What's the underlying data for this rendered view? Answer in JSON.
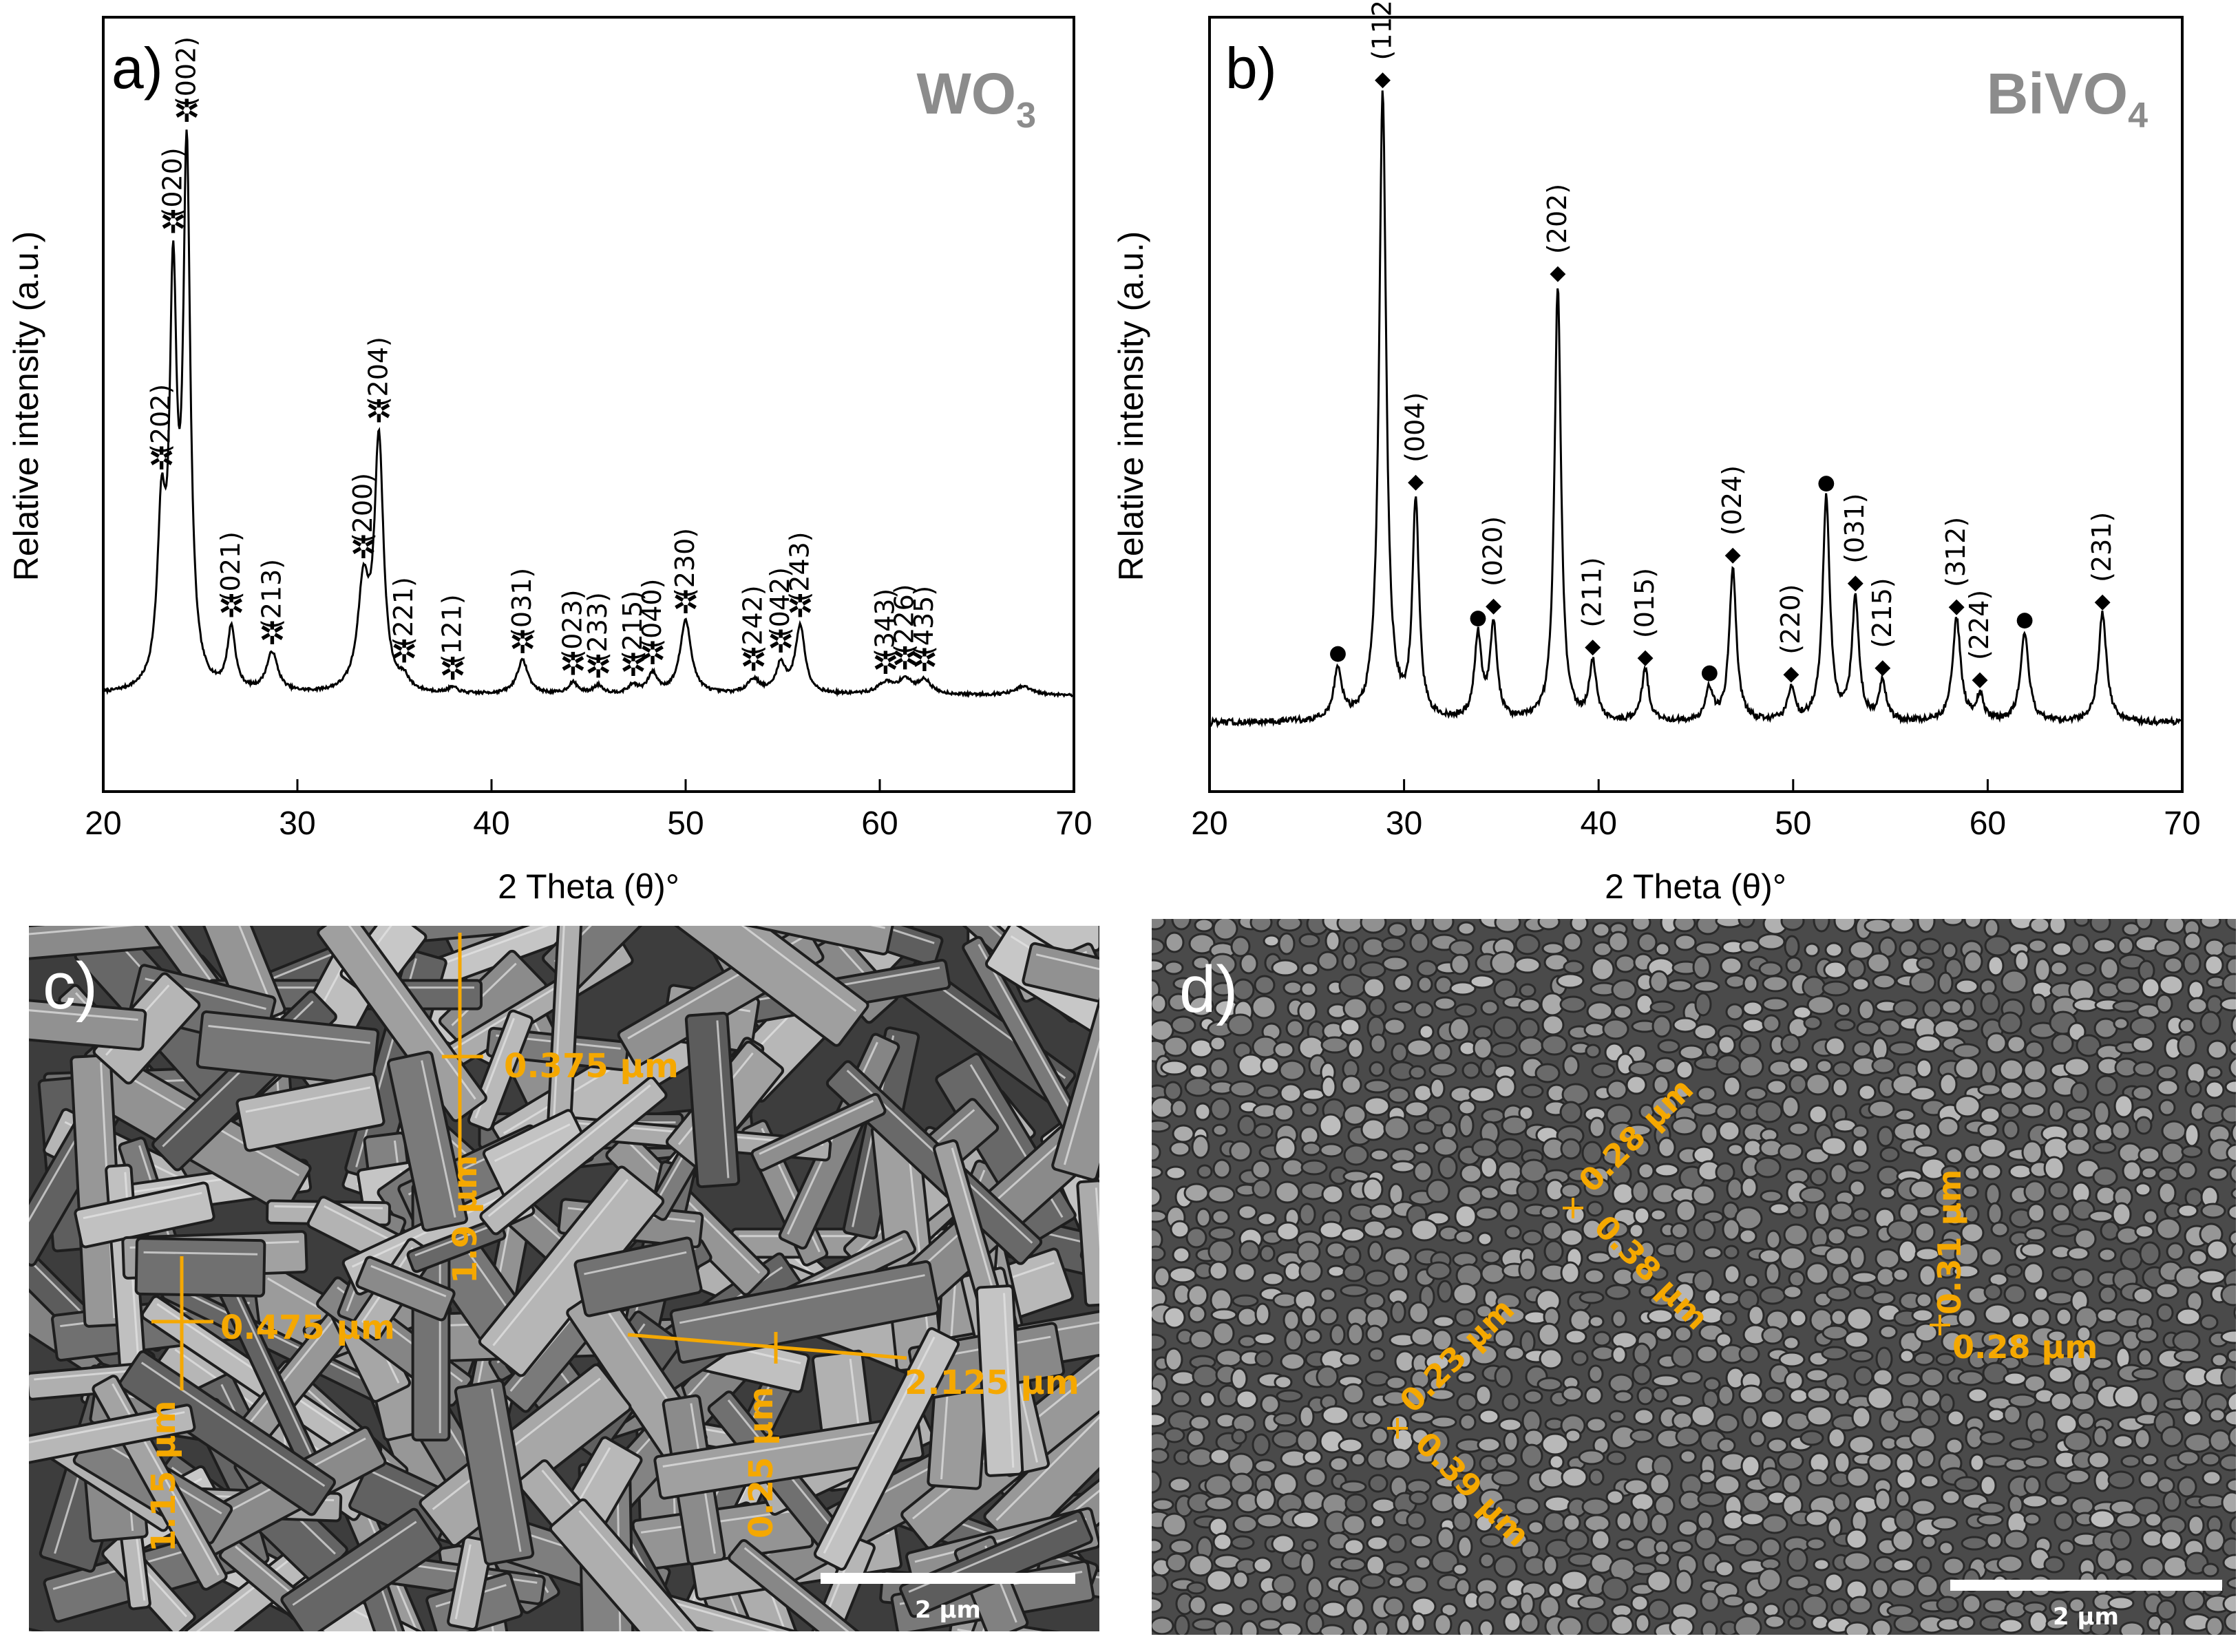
{
  "panels": {
    "a": {
      "label": "a)",
      "material_main": "WO",
      "material_sub": "3"
    },
    "b": {
      "label": "b)",
      "material_main": "BiVO",
      "material_sub": "4"
    },
    "c": {
      "label": "c)",
      "scale_bar": "2 μm",
      "measurements": [
        "0.375 μm",
        "1.9 μm",
        "0.475 μm",
        "1.15 μm",
        "2.125 μm",
        "0.25 μm"
      ]
    },
    "d": {
      "label": "d)",
      "scale_bar": "2 μm",
      "measurements": [
        "0.28 μm",
        "0.38 μm",
        "0.23 μm",
        "0.39 μm",
        "0.31 μm",
        "0.28 μm"
      ]
    }
  },
  "colors": {
    "annotation": "#f5a800",
    "trace": "#000000",
    "title_gray": "#8c8c8c"
  },
  "chart_data": [
    {
      "type": "line",
      "panel": "a",
      "xlabel": "2 Theta (θ)°",
      "ylabel": "Relative intensity (a.u.)",
      "xlim": [
        20,
        70
      ],
      "xticks": [
        20,
        30,
        40,
        50,
        60,
        70
      ],
      "baseline": 0,
      "peaks": [
        {
          "x": 23.0,
          "h": 28,
          "w": 0.25,
          "label": "(202)"
        },
        {
          "x": 23.6,
          "h": 68,
          "w": 0.22,
          "label": "(020)"
        },
        {
          "x": 24.3,
          "h": 93,
          "w": 0.22,
          "label": "(002)"
        },
        {
          "x": 26.6,
          "h": 11,
          "w": 0.25,
          "label": "(021)"
        },
        {
          "x": 28.7,
          "h": 7,
          "w": 0.35,
          "label": "(213)"
        },
        {
          "x": 33.4,
          "h": 18,
          "w": 0.35,
          "label": "(200)"
        },
        {
          "x": 34.2,
          "h": 44,
          "w": 0.28,
          "label": "(204)"
        },
        {
          "x": 35.5,
          "h": 2,
          "w": 0.3,
          "label": "(221)"
        },
        {
          "x": 38.0,
          "h": 1,
          "w": 0.3,
          "label": "(121)"
        },
        {
          "x": 41.6,
          "h": 6,
          "w": 0.35,
          "label": "(031)"
        },
        {
          "x": 44.2,
          "h": 2,
          "w": 0.3,
          "label": "(023)"
        },
        {
          "x": 45.5,
          "h": 1.5,
          "w": 0.3,
          "label": "(233)"
        },
        {
          "x": 47.3,
          "h": 1.5,
          "w": 0.3,
          "label": "(215)"
        },
        {
          "x": 48.3,
          "h": 3.5,
          "w": 0.3,
          "label": "(040)"
        },
        {
          "x": 50.0,
          "h": 13,
          "w": 0.35,
          "label": "(230)"
        },
        {
          "x": 53.5,
          "h": 2.5,
          "w": 0.4,
          "label": "(242)"
        },
        {
          "x": 54.9,
          "h": 5,
          "w": 0.3,
          "label": "(042)"
        },
        {
          "x": 55.9,
          "h": 12,
          "w": 0.3,
          "label": "(243)"
        },
        {
          "x": 60.3,
          "h": 2,
          "w": 0.5,
          "label": "(343)"
        },
        {
          "x": 61.3,
          "h": 2.5,
          "w": 0.4,
          "label": "(226)"
        },
        {
          "x": 62.3,
          "h": 2.5,
          "w": 0.4,
          "label": "(435)"
        },
        {
          "x": 67.4,
          "h": 1.5,
          "w": 0.5,
          "label": ""
        }
      ]
    },
    {
      "type": "line",
      "panel": "b",
      "xlabel": "2 Theta (θ)°",
      "ylabel": "Relative intensity (a.u.)",
      "xlim": [
        20,
        70
      ],
      "xticks": [
        20,
        30,
        40,
        50,
        60,
        70
      ],
      "baseline": 0,
      "markers": {
        "circle": "●",
        "diamond": "◆"
      },
      "peaks": [
        {
          "x": 26.6,
          "h": 8,
          "w": 0.25,
          "marker": "circle",
          "label": ""
        },
        {
          "x": 28.9,
          "h": 98,
          "w": 0.22,
          "marker": "diamond",
          "label": "(112)"
        },
        {
          "x": 30.6,
          "h": 34,
          "w": 0.2,
          "marker": "diamond",
          "label": "(004)"
        },
        {
          "x": 33.8,
          "h": 13,
          "w": 0.22,
          "marker": "circle",
          "label": ""
        },
        {
          "x": 34.6,
          "h": 15,
          "w": 0.22,
          "marker": "diamond",
          "label": "(020)"
        },
        {
          "x": 37.9,
          "h": 68,
          "w": 0.2,
          "marker": "diamond",
          "label": "(202)"
        },
        {
          "x": 39.7,
          "h": 9,
          "w": 0.22,
          "marker": "diamond",
          "label": "(211)"
        },
        {
          "x": 42.4,
          "h": 8,
          "w": 0.22,
          "marker": "diamond",
          "label": "(015)"
        },
        {
          "x": 45.7,
          "h": 5,
          "w": 0.22,
          "marker": "circle",
          "label": ""
        },
        {
          "x": 46.9,
          "h": 24,
          "w": 0.22,
          "marker": "diamond",
          "label": "(024)"
        },
        {
          "x": 49.9,
          "h": 5,
          "w": 0.22,
          "marker": "diamond",
          "label": "(220)"
        },
        {
          "x": 51.7,
          "h": 35,
          "w": 0.22,
          "marker": "circle",
          "label": ""
        },
        {
          "x": 53.2,
          "h": 19,
          "w": 0.22,
          "marker": "diamond",
          "label": "(031)"
        },
        {
          "x": 54.6,
          "h": 6,
          "w": 0.22,
          "marker": "diamond",
          "label": "(215)"
        },
        {
          "x": 58.4,
          "h": 16,
          "w": 0.25,
          "marker": "diamond",
          "label": "(312)"
        },
        {
          "x": 59.6,
          "h": 4,
          "w": 0.22,
          "marker": "diamond",
          "label": "(224)"
        },
        {
          "x": 61.9,
          "h": 14,
          "w": 0.25,
          "marker": "circle",
          "label": ""
        },
        {
          "x": 65.9,
          "h": 17,
          "w": 0.25,
          "marker": "diamond",
          "label": "(231)"
        }
      ]
    }
  ]
}
